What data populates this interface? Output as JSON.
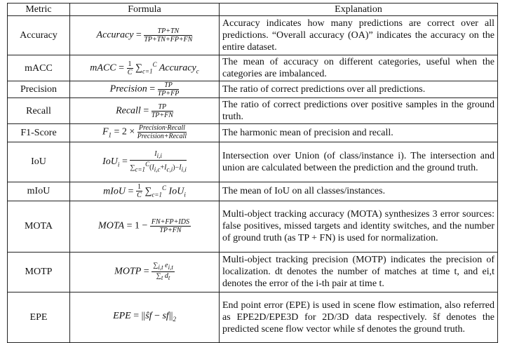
{
  "table": {
    "header": [
      "Metric",
      "Formula",
      "Explanation"
    ],
    "rows": [
      {
        "metric": "Accuracy",
        "formula": [
          {
            "t": "Accuracy"
          },
          {
            "op": " = "
          },
          {
            "frac": {
              "num": [
                {
                  "t": "TP+TN"
                }
              ],
              "den": [
                {
                  "t": "TP+TN+FP+FN"
                }
              ]
            }
          }
        ],
        "explanation": "Accuracy indicates how many predictions are correct over all predictions. “Overall accuracy (OA)” indicates the accuracy on the entire dataset."
      },
      {
        "metric": "mACC",
        "formula": [
          {
            "t": "mACC"
          },
          {
            "op": " = "
          },
          {
            "frac": {
              "num": [
                {
                  "op": "1"
                }
              ],
              "den": [
                {
                  "t": "C"
                }
              ]
            }
          },
          {
            "op": " ∑"
          },
          {
            "sub": "c=1"
          },
          {
            "sup": "C"
          },
          {
            "t": " Accuracy"
          },
          {
            "sub": "c"
          }
        ],
        "explanation": "The mean of accuracy on different categories, useful when the categories are imbalanced."
      },
      {
        "metric": "Precision",
        "formula": [
          {
            "t": "Precision"
          },
          {
            "op": " = "
          },
          {
            "frac": {
              "num": [
                {
                  "t": "TP"
                }
              ],
              "den": [
                {
                  "t": "TP+FP"
                }
              ]
            }
          }
        ],
        "explanation": "The ratio of correct predictions over all predictions."
      },
      {
        "metric": "Recall",
        "formula": [
          {
            "t": "Recall"
          },
          {
            "op": " = "
          },
          {
            "frac": {
              "num": [
                {
                  "t": "TP"
                }
              ],
              "den": [
                {
                  "t": "TP+FN"
                }
              ]
            }
          }
        ],
        "explanation": "The ratio of correct predictions over positive samples in the ground truth."
      },
      {
        "metric": "F1-Score",
        "formula": [
          {
            "t": "F"
          },
          {
            "sub": "1"
          },
          {
            "op": " = 2 × "
          },
          {
            "frac": {
              "num": [
                {
                  "t": "Precision·Recall"
                }
              ],
              "den": [
                {
                  "t": "Precision+Recall"
                }
              ]
            }
          }
        ],
        "explanation": "The harmonic mean of precision and recall."
      },
      {
        "metric": "IoU",
        "formula": [
          {
            "t": "IoU"
          },
          {
            "sub": "i"
          },
          {
            "op": " = "
          },
          {
            "frac": {
              "num": [
                {
                  "t": "I"
                },
                {
                  "sub": "i,i"
                }
              ],
              "den": [
                {
                  "op": "∑"
                },
                {
                  "sub": "c=1"
                },
                {
                  "sup": "C"
                },
                {
                  "op": "("
                },
                {
                  "t": "I"
                },
                {
                  "sub": "i,c"
                },
                {
                  "op": "+"
                },
                {
                  "t": "I"
                },
                {
                  "sub": "c,i"
                },
                {
                  "op": ")−"
                },
                {
                  "t": "I"
                },
                {
                  "sub": "i,i"
                }
              ]
            }
          }
        ],
        "explanation": "Intersection over Union (of class/instance i). The intersection and union are calculated between the prediction and the ground truth."
      },
      {
        "metric": "mIoU",
        "formula": [
          {
            "t": "mIoU"
          },
          {
            "op": " = "
          },
          {
            "frac": {
              "num": [
                {
                  "op": "1"
                }
              ],
              "den": [
                {
                  "t": "C"
                }
              ]
            }
          },
          {
            "op": " ∑"
          },
          {
            "sub": "c=1"
          },
          {
            "sup": "C"
          },
          {
            "t": " IoU"
          },
          {
            "sub": "i"
          }
        ],
        "explanation": "The mean of IoU on all classes/instances."
      },
      {
        "metric": "MOTA",
        "formula": [
          {
            "t": "MOTA"
          },
          {
            "op": " = 1 − "
          },
          {
            "frac": {
              "num": [
                {
                  "t": "FN+FP+IDS"
                }
              ],
              "den": [
                {
                  "t": "TP+FN"
                }
              ]
            }
          }
        ],
        "explanation": "Multi-object tracking accuracy (MOTA) synthesizes 3 error sources: false positives, missed targets and identity switches, and the number of ground truth (as TP + FN) is used for normalization."
      },
      {
        "metric": "MOTP",
        "formula": [
          {
            "t": "MOTP"
          },
          {
            "op": " = "
          },
          {
            "frac": {
              "num": [
                {
                  "op": "∑"
                },
                {
                  "sub": "i,t"
                },
                {
                  "t": " e"
                },
                {
                  "sub": "i,t"
                }
              ],
              "den": [
                {
                  "op": "∑"
                },
                {
                  "sub": "t"
                },
                {
                  "t": " d"
                },
                {
                  "sub": "t"
                }
              ]
            }
          }
        ],
        "explanation": "Multi-object tracking precision (MOTP) indicates the precision of localization. dt denotes the number of matches at time t, and ei,t denotes the error of the i-th pair at time t."
      },
      {
        "metric": "EPE",
        "formula": [
          {
            "t": "EPE"
          },
          {
            "op": " = ||"
          },
          {
            "t": "ŝf"
          },
          {
            "op": " − "
          },
          {
            "t": "sf"
          },
          {
            "op": "||"
          },
          {
            "sub": "2"
          }
        ],
        "explanation": "End point error (EPE) is used in scene flow estimation, also referred as EPE2D/EPE3D for 2D/3D data respectively. ŝf denotes the predicted scene flow vector while sf denotes the ground truth."
      }
    ]
  }
}
